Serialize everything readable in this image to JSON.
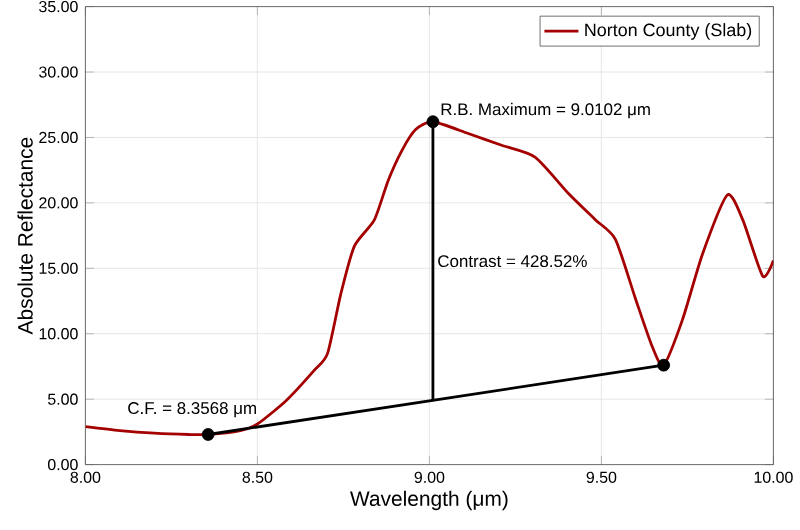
{
  "chart_data": {
    "type": "line",
    "xlabel": "Wavelength (μm)",
    "ylabel": "Absolute Reflectance",
    "xlim": [
      8,
      10
    ],
    "ylim": [
      0,
      35
    ],
    "xticks": [
      {
        "value": 8,
        "label": "8.00"
      },
      {
        "value": 8.5,
        "label": "8.50"
      },
      {
        "value": 9,
        "label": "9.00"
      },
      {
        "value": 9.5,
        "label": "9.50"
      },
      {
        "value": 10,
        "label": "10.00"
      }
    ],
    "yticks": [
      {
        "value": 0,
        "label": "0.00"
      },
      {
        "value": 5,
        "label": "5.00"
      },
      {
        "value": 10,
        "label": "10.00"
      },
      {
        "value": 15,
        "label": "15.00"
      },
      {
        "value": 20,
        "label": "20.00"
      },
      {
        "value": 25,
        "label": "25.00"
      },
      {
        "value": 30,
        "label": "30.00"
      },
      {
        "value": 35,
        "label": "35.00"
      }
    ],
    "grid": true,
    "legend": "top right",
    "series": [
      {
        "name": "Norton County (Slab)",
        "color": "#a50000",
        "marker": "none",
        "x": [
          8.0,
          8.1,
          8.2,
          8.3,
          8.3568,
          8.45,
          8.5,
          8.584,
          8.665,
          8.704,
          8.743,
          8.782,
          8.84,
          8.88,
          8.92,
          8.96,
          9.0102,
          9.113,
          9.21,
          9.307,
          9.405,
          9.483,
          9.541,
          9.6,
          9.648,
          9.681,
          9.736,
          9.794,
          9.866,
          9.911,
          9.969,
          10.0
        ],
        "values": [
          2.9,
          2.6,
          2.4,
          2.3,
          2.3,
          2.6,
          3.1,
          4.9,
          7.2,
          8.5,
          13.1,
          16.7,
          18.7,
          21.7,
          24.0,
          25.6,
          26.2,
          25.3,
          24.4,
          23.5,
          20.7,
          18.7,
          17.2,
          12.6,
          9.0,
          7.6,
          11.1,
          16.1,
          20.6,
          18.7,
          14.4,
          15.6
        ]
      },
      {
        "color": "#000000",
        "marker": "none",
        "x": [
          8.3568,
          9.681
        ],
        "values": [
          2.3,
          7.6
        ]
      },
      {
        "color": "#000000",
        "marker": "none",
        "x": [
          9.0102,
          9.0102
        ],
        "values": [
          4.9,
          26.2
        ]
      },
      {
        "type": "scatter",
        "color": "#000000",
        "marker": "circle",
        "x": [
          8.3568,
          9.0102,
          9.681
        ],
        "values": [
          2.3,
          26.2,
          7.6
        ]
      }
    ],
    "annotations": [
      "C.F. = 8.3568 μm",
      "R.B. Maximum = 9.0102 μm",
      "Contrast = 428.52%"
    ]
  }
}
